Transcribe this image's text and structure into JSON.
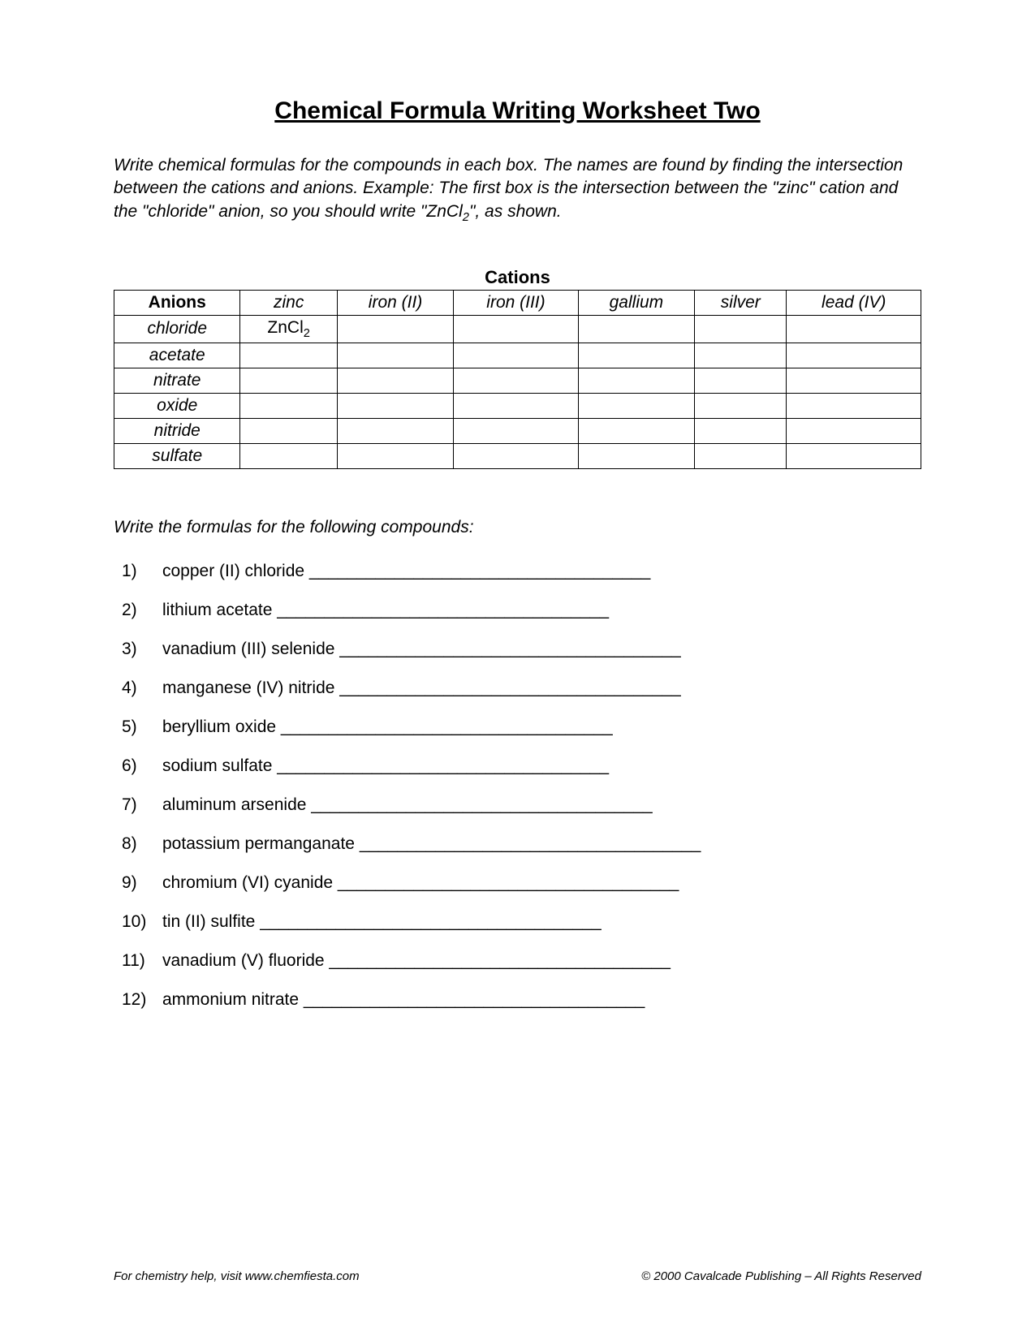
{
  "title": "Chemical Formula Writing Worksheet Two",
  "instructions": "Write chemical formulas for the compounds in each box.  The names are found by finding the intersection between the cations and anions.  Example:  The first box is the intersection between the \"zinc\" cation and the \"chloride\" anion, so you should write \"ZnCl",
  "instructions_sub": "2",
  "instructions_tail": "\", as shown.",
  "cations_label": "Cations",
  "table": {
    "corner": "Anions",
    "cations": [
      "zinc",
      "iron (II)",
      "iron (III)",
      "gallium",
      "silver",
      "lead (IV)"
    ],
    "anions": [
      "chloride",
      "acetate",
      "nitrate",
      "oxide",
      "nitride",
      "sulfate"
    ],
    "example_cell": {
      "row": 0,
      "col": 0,
      "prefix": "ZnCl",
      "sub": "2"
    }
  },
  "section2_label": "Write the formulas for the following compounds:",
  "questions": [
    {
      "num": "1)",
      "name": "copper (II) chloride",
      "blank": " ____________________________________"
    },
    {
      "num": "2)",
      "name": "lithium acetate",
      "blank": " ___________________________________"
    },
    {
      "num": "3)",
      "name": "vanadium (III) selenide",
      "blank": " ____________________________________"
    },
    {
      "num": "4)",
      "name": "manganese (IV) nitride",
      "blank": " ____________________________________"
    },
    {
      "num": "5)",
      "name": "beryllium oxide",
      "blank": " ___________________________________"
    },
    {
      "num": "6)",
      "name": "sodium sulfate",
      "blank": " ___________________________________"
    },
    {
      "num": "7)",
      "name": "aluminum arsenide",
      "blank": " ____________________________________"
    },
    {
      "num": "8)",
      "name": "potassium permanganate",
      "blank": " ____________________________________"
    },
    {
      "num": "9)",
      "name": "chromium (VI) cyanide",
      "blank": " ____________________________________"
    },
    {
      "num": "10)",
      "name": "tin (II) sulfite",
      "blank": " ____________________________________"
    },
    {
      "num": "11)",
      "name": "vanadium (V) fluoride",
      "blank": " ____________________________________"
    },
    {
      "num": "12)",
      "name": "ammonium nitrate",
      "blank": " ____________________________________"
    }
  ],
  "footer": {
    "left": "For chemistry help, visit www.chemfiesta.com",
    "right": "© 2000 Cavalcade Publishing – All Rights Reserved"
  }
}
